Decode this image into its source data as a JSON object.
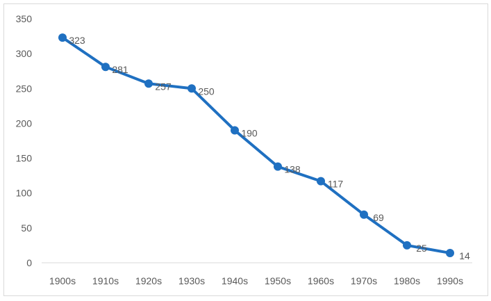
{
  "chart_data": {
    "type": "line",
    "title": "",
    "xlabel": "",
    "ylabel": "",
    "categories": [
      "1900s",
      "1910s",
      "1920s",
      "1930s",
      "1940s",
      "1950s",
      "1960s",
      "1970s",
      "1980s",
      "1990s"
    ],
    "values": [
      323,
      281,
      257,
      250,
      190,
      138,
      117,
      69,
      25,
      14
    ],
    "ylim": [
      0,
      350
    ],
    "yticks": [
      0,
      50,
      100,
      150,
      200,
      250,
      300,
      350
    ],
    "grid": false,
    "legend": "none",
    "data_labels": true,
    "color": "#1f70c1",
    "label_color": "#595959",
    "axis_label_color": "#595959"
  }
}
